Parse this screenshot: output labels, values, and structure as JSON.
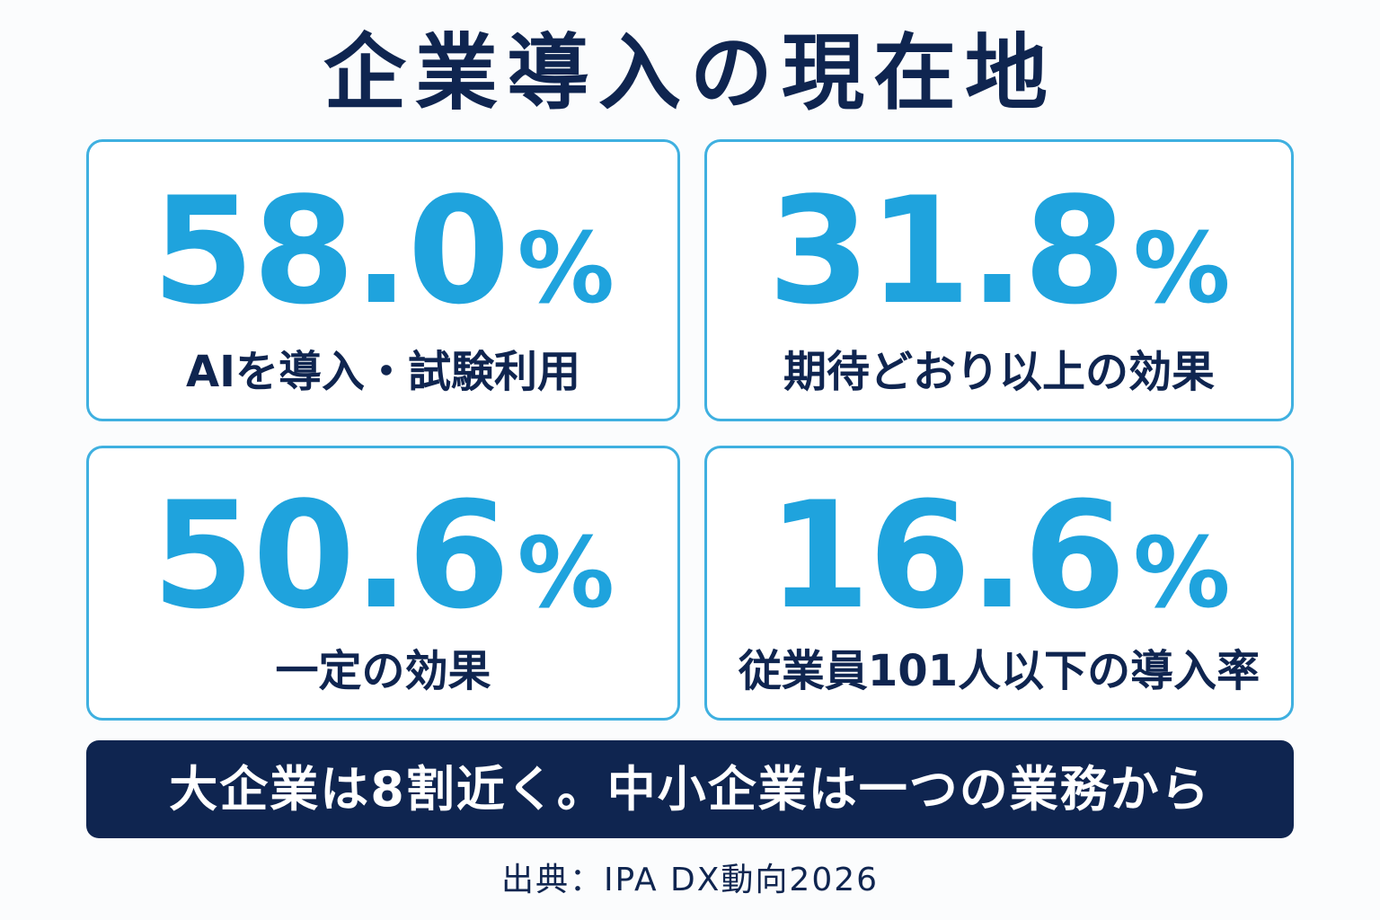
{
  "title": "企業導入の現在地",
  "stats": [
    {
      "value": "58.0",
      "unit": "%",
      "label": "AIを導入・試験利用"
    },
    {
      "value": "31.8",
      "unit": "%",
      "label": "期待どおり以上の効果"
    },
    {
      "value": "50.6",
      "unit": "%",
      "label": "一定の効果"
    },
    {
      "value": "16.6",
      "unit": "%",
      "label": "従業員101人以下の導入率"
    }
  ],
  "banner": "大企業は8割近く。中小企業は一つの業務から",
  "source": "出典：IPA DX動向2026",
  "colors": {
    "navy": "#0f2550",
    "accent_blue": "#1fa3dd",
    "card_border": "#3fb0e0",
    "background": "#fbfcfd"
  }
}
